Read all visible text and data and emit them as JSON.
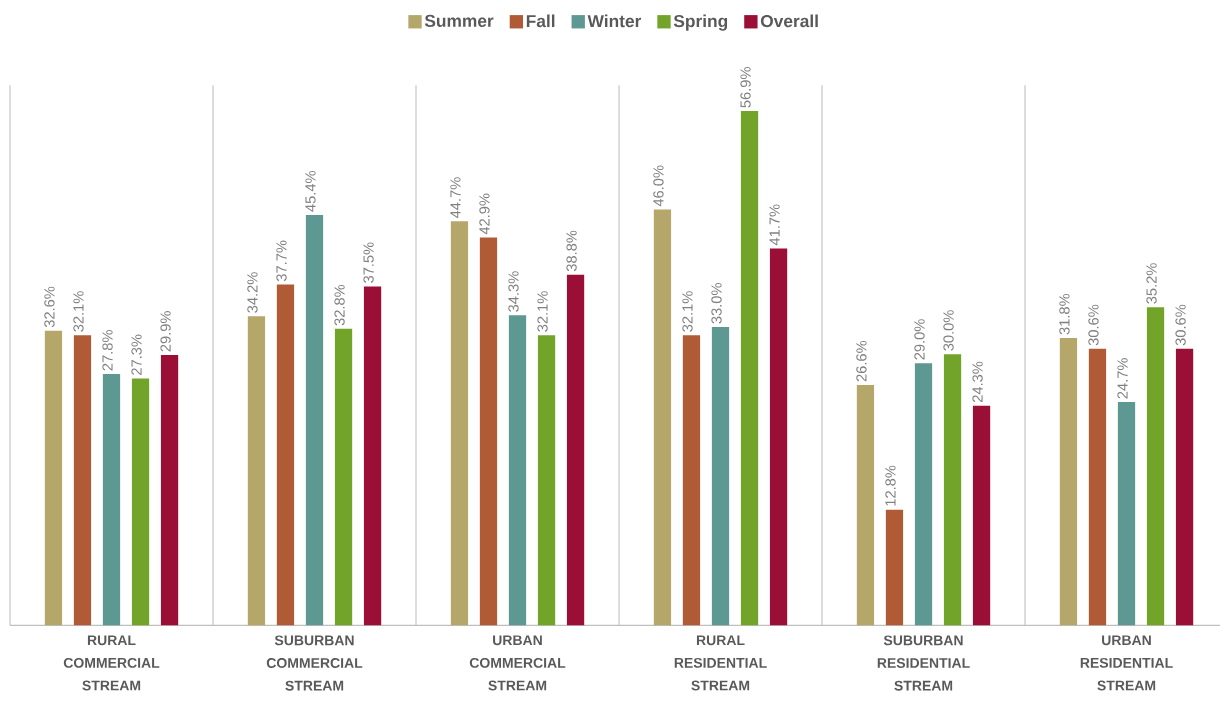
{
  "chart_data": {
    "type": "bar",
    "categories": [
      "RURAL COMMERCIAL STREAM",
      "SUBURBAN COMMERCIAL STREAM",
      "URBAN COMMERCIAL STREAM",
      "RURAL RESIDENTIAL STREAM",
      "SUBURBAN RESIDENTIAL STREAM",
      "URBAN RESIDENTIAL STREAM"
    ],
    "series": [
      {
        "name": "Summer",
        "color": "#b5a66a",
        "values": [
          32.6,
          34.2,
          44.7,
          46.0,
          26.6,
          31.8
        ],
        "value_labels": [
          "32.6%",
          "34.2%",
          "44.7%",
          "46.0%",
          "26.6%",
          "31.8%"
        ]
      },
      {
        "name": "Fall",
        "color": "#b05a36",
        "values": [
          32.1,
          37.7,
          42.9,
          32.1,
          12.8,
          30.6
        ],
        "value_labels": [
          "32.1%",
          "37.7%",
          "42.9%",
          "32.1%",
          "12.8%",
          "30.6%"
        ]
      },
      {
        "name": "Winter",
        "color": "#5e9893",
        "values": [
          27.8,
          45.4,
          34.3,
          33.0,
          29.0,
          24.7
        ],
        "value_labels": [
          "27.8%",
          "45.4%",
          "34.3%",
          "33.0%",
          "29.0%",
          "24.7%"
        ]
      },
      {
        "name": "Spring",
        "color": "#73a42a",
        "values": [
          27.3,
          32.8,
          32.1,
          56.9,
          30.0,
          35.2
        ],
        "value_labels": [
          "27.3%",
          "32.8%",
          "32.1%",
          "56.9%",
          "30.0%",
          "35.2%"
        ]
      },
      {
        "name": "Overall",
        "color": "#9b0e35",
        "values": [
          29.9,
          37.5,
          38.8,
          41.7,
          24.3,
          30.6
        ],
        "value_labels": [
          "29.9%",
          "37.5%",
          "38.8%",
          "41.7%",
          "24.3%",
          "30.6%"
        ]
      }
    ],
    "grid": "x",
    "legend": "top"
  }
}
